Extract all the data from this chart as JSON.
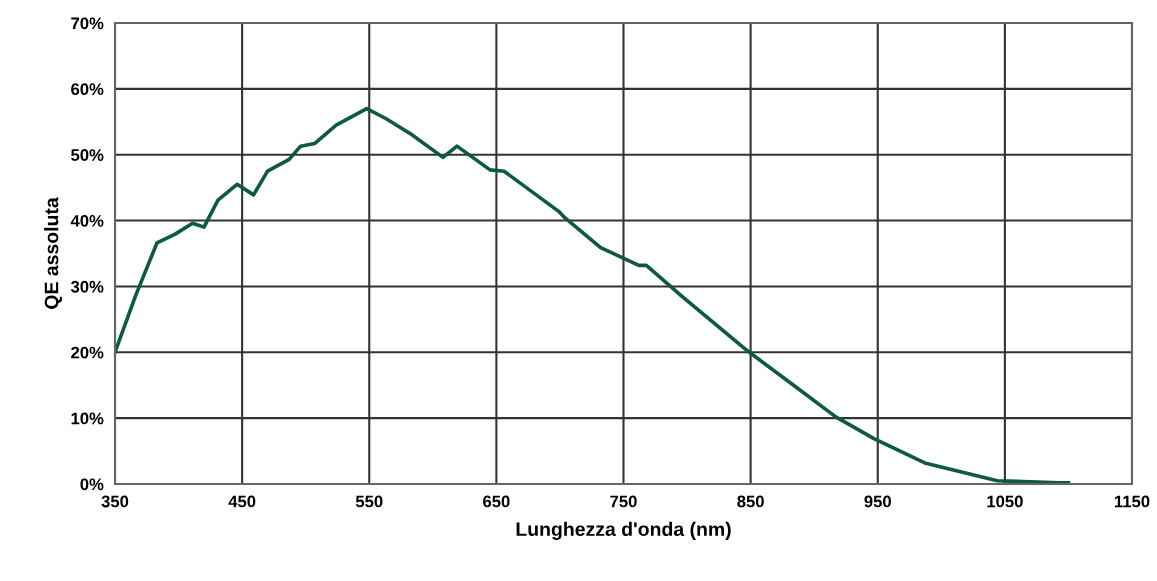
{
  "chart_data": {
    "type": "line",
    "xlabel": "Lunghezza d'onda (nm)",
    "ylabel": "QE assoluta",
    "x": [
      350,
      366,
      383,
      397,
      411,
      420,
      431,
      446,
      459,
      470,
      487,
      496,
      507,
      524,
      548,
      563,
      583,
      608,
      619,
      645,
      656,
      699,
      704,
      732,
      762,
      768,
      796,
      847,
      883,
      917,
      947,
      987,
      1044,
      1093,
      1100
    ],
    "series": [
      {
        "color": "#0d5b3c",
        "values": [
          20,
          28.5,
          36.6,
          37.9,
          39.6,
          39.0,
          43.1,
          45.5,
          43.9,
          47.5,
          49.3,
          51.3,
          51.7,
          54.5,
          57,
          55.5,
          53.1,
          49.6,
          51.3,
          47.7,
          47.5,
          41.4,
          40.4,
          35.9,
          33.2,
          33.2,
          28.5,
          20.3,
          15.1,
          10.2,
          6.9,
          3.2,
          0.5,
          0.2,
          0.2
        ]
      }
    ],
    "xlim": [
      350,
      1150
    ],
    "xticks": [
      350,
      450,
      550,
      650,
      750,
      850,
      950,
      1050,
      1150
    ],
    "ylim": [
      0,
      70
    ],
    "yticks": [
      {
        "value": 0,
        "label": "0%"
      },
      {
        "value": 10,
        "label": "10%"
      },
      {
        "value": 20,
        "label": "20%"
      },
      {
        "value": 30,
        "label": "30%"
      },
      {
        "value": 40,
        "label": "40%"
      },
      {
        "value": 50,
        "label": "50%"
      },
      {
        "value": 60,
        "label": "60%"
      },
      {
        "value": 70,
        "label": "70%"
      }
    ],
    "grid": true,
    "marker": "none",
    "line_style": "solid",
    "legend": false
  }
}
